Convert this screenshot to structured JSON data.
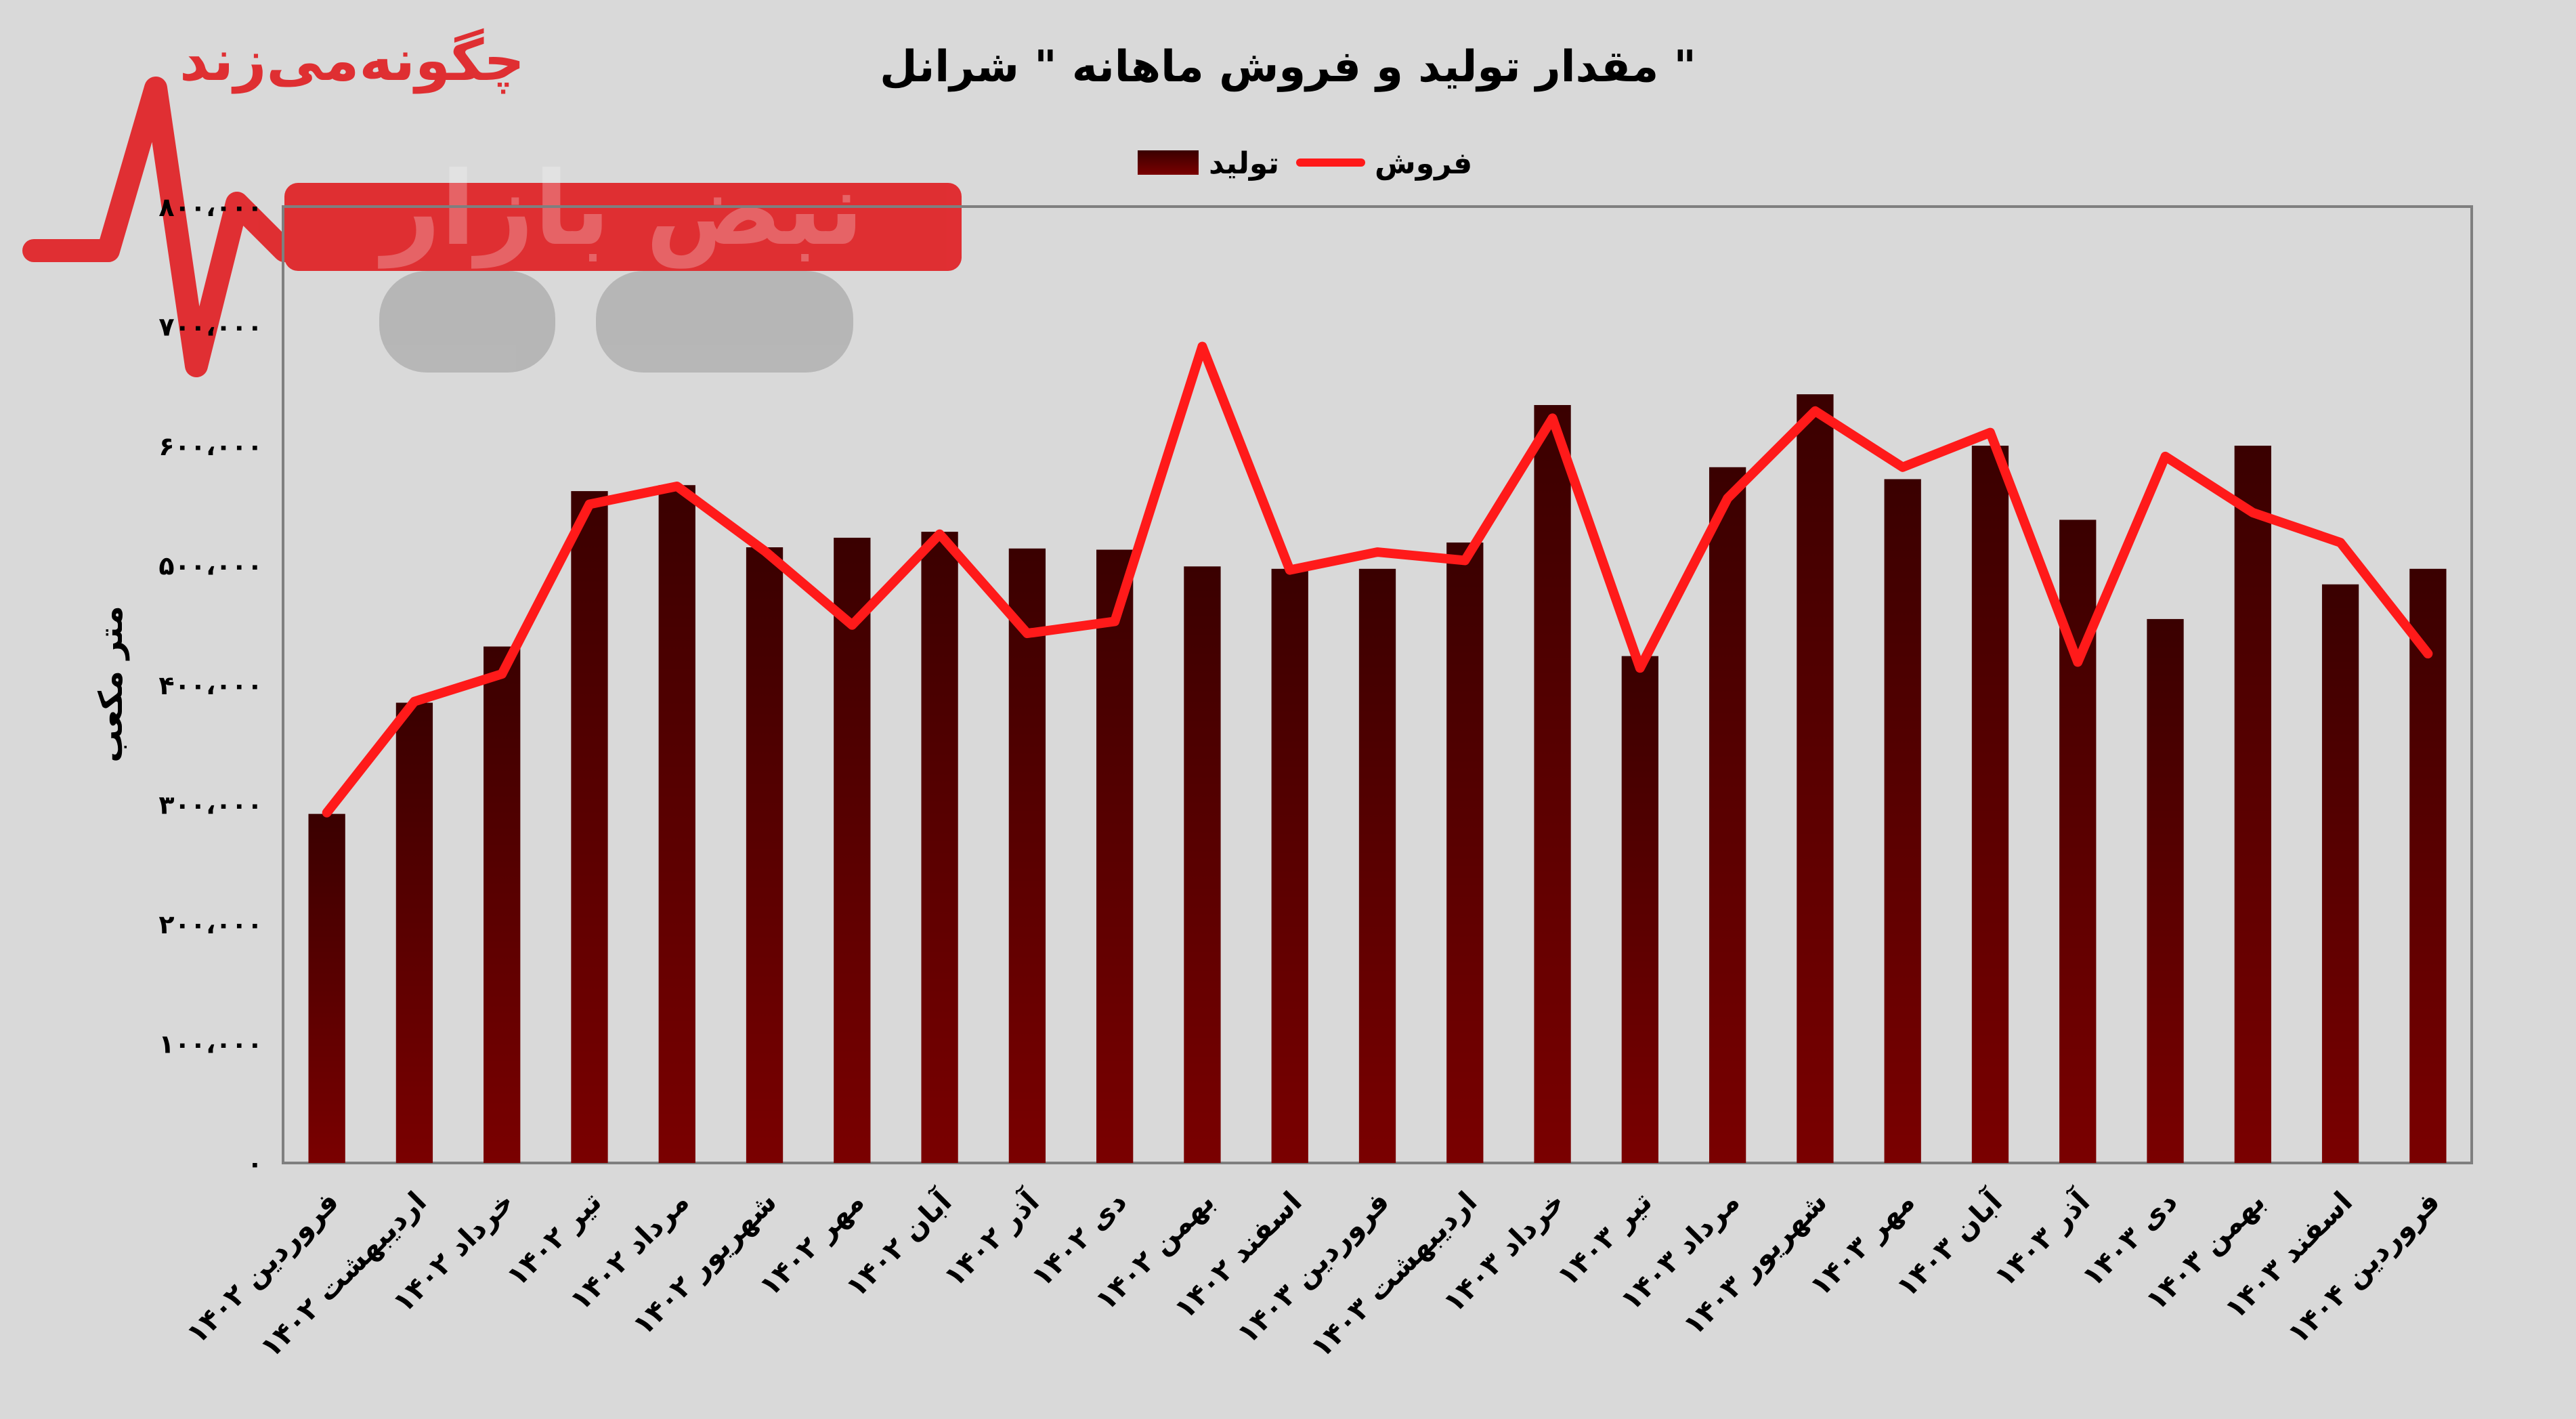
{
  "chart_data": {
    "type": "bar",
    "title": "مقدار تولید و فروش ماهانه \" شرانل \"",
    "ylabel": "متر مکعب",
    "ylim": [
      0,
      800000
    ],
    "yticks": [
      0,
      100000,
      200000,
      300000,
      400000,
      500000,
      600000,
      700000,
      800000
    ],
    "ytick_labels": [
      "۰",
      "۱۰۰،۰۰۰",
      "۲۰۰،۰۰۰",
      "۳۰۰،۰۰۰",
      "۴۰۰،۰۰۰",
      "۵۰۰،۰۰۰",
      "۶۰۰،۰۰۰",
      "۷۰۰،۰۰۰",
      "۸۰۰،۰۰۰"
    ],
    "legend_position": "top",
    "grid": false,
    "categories": [
      "فروردین ۱۴۰۲",
      "اردیبهشت ۱۴۰۲",
      "خرداد ۱۴۰۲",
      "تیر ۱۴۰۲",
      "مرداد ۱۴۰۲",
      "شهریور ۱۴۰۲",
      "مهر ۱۴۰۲",
      "آبان ۱۴۰۲",
      "آذر ۱۴۰۲",
      "دی ۱۴۰۲",
      "بهمن ۱۴۰۲",
      "اسفند ۱۴۰۲",
      "فروردین ۱۴۰۳",
      "اردیبهشت ۱۴۰۳",
      "خرداد ۱۴۰۳",
      "تیر ۱۴۰۳",
      "مرداد ۱۴۰۳",
      "شهریور ۱۴۰۳",
      "مهر ۱۴۰۳",
      "آبان ۱۴۰۳",
      "آذر ۱۴۰۳",
      "دی ۱۴۰۳",
      "بهمن ۱۴۰۳",
      "اسفند ۱۴۰۳",
      "فروردین ۱۴۰۴"
    ],
    "series": [
      {
        "name": "تولید",
        "type": "bar",
        "color": "#6b0000",
        "values": [
          292000,
          385000,
          432000,
          562000,
          567000,
          515000,
          523000,
          528000,
          514000,
          513000,
          499000,
          497000,
          497000,
          519000,
          634000,
          424000,
          582000,
          643000,
          572000,
          600000,
          538000,
          455000,
          600000,
          484000,
          497000
        ]
      },
      {
        "name": "فروش",
        "type": "line",
        "color": "#ff1a1a",
        "values": [
          293000,
          386000,
          409000,
          551000,
          566000,
          512000,
          450000,
          526000,
          443000,
          453000,
          683000,
          496000,
          511000,
          504000,
          623000,
          414000,
          556000,
          629000,
          582000,
          611000,
          419000,
          591000,
          544000,
          519000,
          426000
        ]
      }
    ]
  },
  "watermark": {
    "tagline": "چگونه‌می‌زند",
    "brand": "نبض بازار"
  },
  "colors": {
    "background": "#d9d9d9",
    "plot_border": "#7f7f7f",
    "bar_top": "#3a0000",
    "bar_bottom": "#7a0000",
    "line": "#ff1a1a",
    "watermark_red": "#e0262a",
    "watermark_gray": "#b5b5b5"
  }
}
